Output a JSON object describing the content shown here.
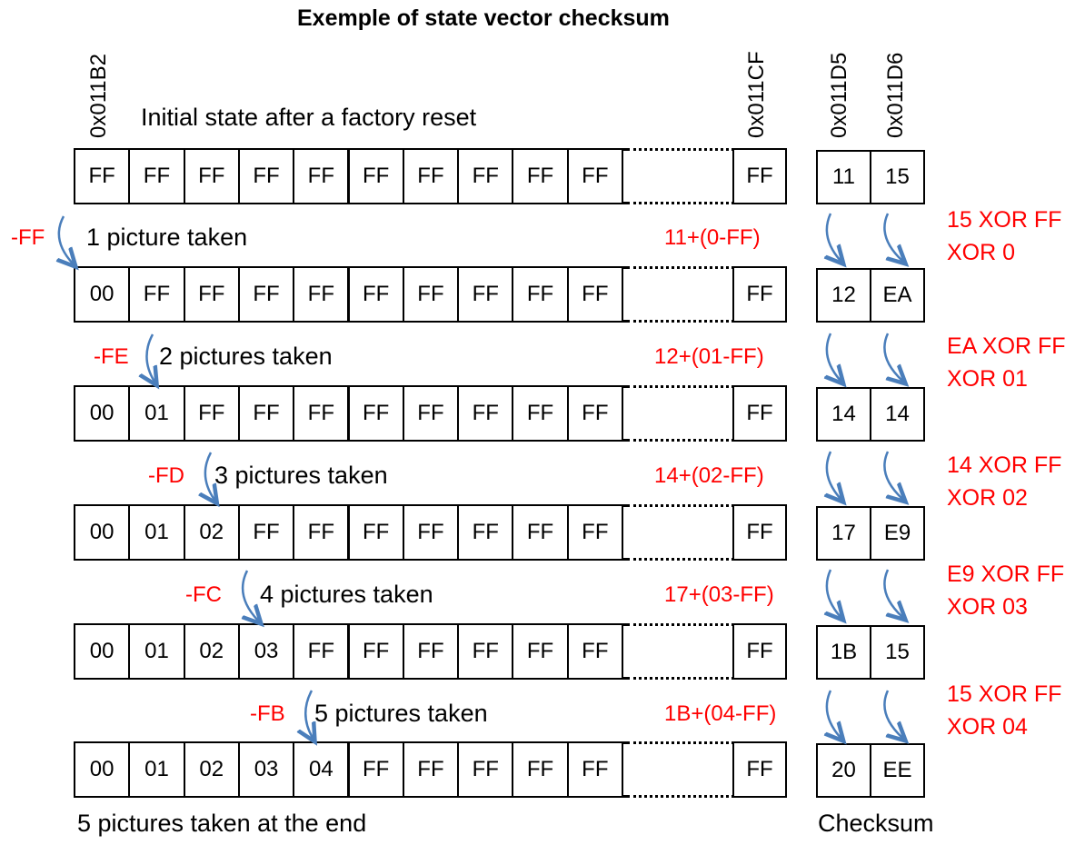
{
  "title": "Exemple of state vector checksum",
  "addresses": {
    "first": "0x011B2",
    "last": "0x011CF",
    "checksum_a": "0x011D5",
    "checksum_b": "0x011D6"
  },
  "initial_caption": "Initial state after a factory reset",
  "end_caption": "5 pictures taken at the end",
  "checksum_label": "Checksum",
  "rows": [
    {
      "cells": [
        "FF",
        "FF",
        "FF",
        "FF",
        "FF",
        "FF",
        "FF",
        "FF",
        "FF",
        "FF"
      ],
      "last": "FF",
      "cs1": "11",
      "cs2": "15"
    },
    {
      "cells": [
        "00",
        "FF",
        "FF",
        "FF",
        "FF",
        "FF",
        "FF",
        "FF",
        "FF",
        "FF"
      ],
      "last": "FF",
      "cs1": "12",
      "cs2": "EA"
    },
    {
      "cells": [
        "00",
        "01",
        "FF",
        "FF",
        "FF",
        "FF",
        "FF",
        "FF",
        "FF",
        "FF"
      ],
      "last": "FF",
      "cs1": "14",
      "cs2": "14"
    },
    {
      "cells": [
        "00",
        "01",
        "02",
        "FF",
        "FF",
        "FF",
        "FF",
        "FF",
        "FF",
        "FF"
      ],
      "last": "FF",
      "cs1": "17",
      "cs2": "E9"
    },
    {
      "cells": [
        "00",
        "01",
        "02",
        "03",
        "FF",
        "FF",
        "FF",
        "FF",
        "FF",
        "FF"
      ],
      "last": "FF",
      "cs1": "1B",
      "cs2": "15"
    },
    {
      "cells": [
        "00",
        "01",
        "02",
        "03",
        "04",
        "FF",
        "FF",
        "FF",
        "FF",
        "FF"
      ],
      "last": "FF",
      "cs1": "20",
      "cs2": "EE"
    }
  ],
  "steps": [
    {
      "delta": "-FF",
      "label": "1 picture taken",
      "sum": "11+(0-FF)",
      "xor1": "15 XOR FF",
      "xor2": "XOR 0"
    },
    {
      "delta": "-FE",
      "label": "2 pictures taken",
      "sum": "12+(01-FF)",
      "xor1": "EA XOR FF",
      "xor2": "XOR 01"
    },
    {
      "delta": "-FD",
      "label": "3 pictures taken",
      "sum": "14+(02-FF)",
      "xor1": "14 XOR FF",
      "xor2": "XOR 02"
    },
    {
      "delta": "-FC",
      "label": "4 pictures taken",
      "sum": "17+(03-FF)",
      "xor1": "E9 XOR FF",
      "xor2": "XOR 03"
    },
    {
      "delta": "-FB",
      "label": "5 pictures taken",
      "sum": "1B+(04-FF)",
      "xor1": "15 XOR FF",
      "xor2": "XOR 04"
    }
  ],
  "colors": {
    "annotation": "#ff0000",
    "arrow": "#4a7ebb",
    "text": "#000000"
  }
}
